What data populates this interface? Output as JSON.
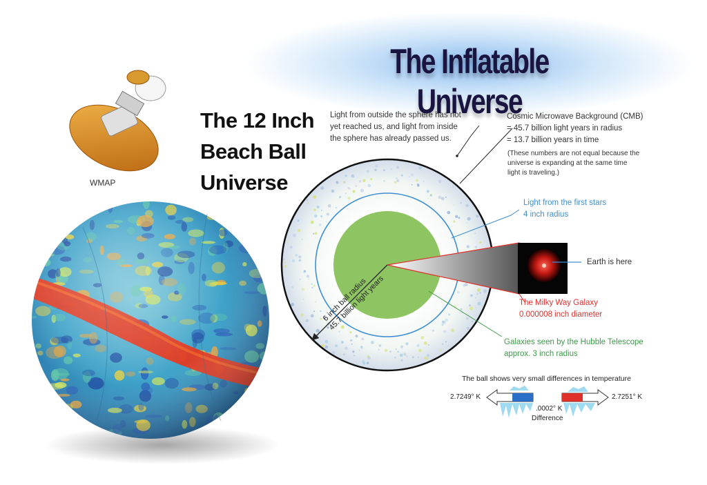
{
  "title": "The Inflatable Universe",
  "subtitle_lines": [
    "The 12 Inch",
    "Beach Ball",
    "Universe"
  ],
  "wmap_label": "WMAP",
  "notes": {
    "outside_light": [
      "Light from outside the sphere has not",
      "yet reached us, and light from inside",
      "the sphere has already passed us."
    ],
    "cmb_title": "Cosmic Microwave Background (CMB)",
    "cmb_radius": "= 45.7 billion light years in radius",
    "cmb_time": "= 13.7 billion years in time",
    "cmb_note": [
      "(These numbers are not equal because the",
      "universe is expanding at the same time",
      "light is traveling.)"
    ]
  },
  "first_stars": [
    "Light from the first stars",
    "4 inch radius"
  ],
  "earth_label": "Earth is here",
  "milky_way": [
    "The Milky Way Galaxy",
    "0.000008 inch diameter"
  ],
  "hubble": [
    "Galaxies seen by the Hubble Telescope",
    "approx. 3 inch radius"
  ],
  "radius_label_1": "6 inch ball radius",
  "radius_label_2": "45.7 billion light years",
  "temperature": {
    "caption": "The ball shows very small differences in temperature",
    "low": "2.7249° K",
    "high": "2.7251° K",
    "diff_value": ".0002° K",
    "diff_label": "Difference"
  },
  "colors": {
    "title": "#1a1440",
    "stars_blue": "#3f8fd0",
    "milky_red": "#e0302a",
    "hubble_green": "#3d9a48",
    "inner_disc": "#8fc462"
  }
}
